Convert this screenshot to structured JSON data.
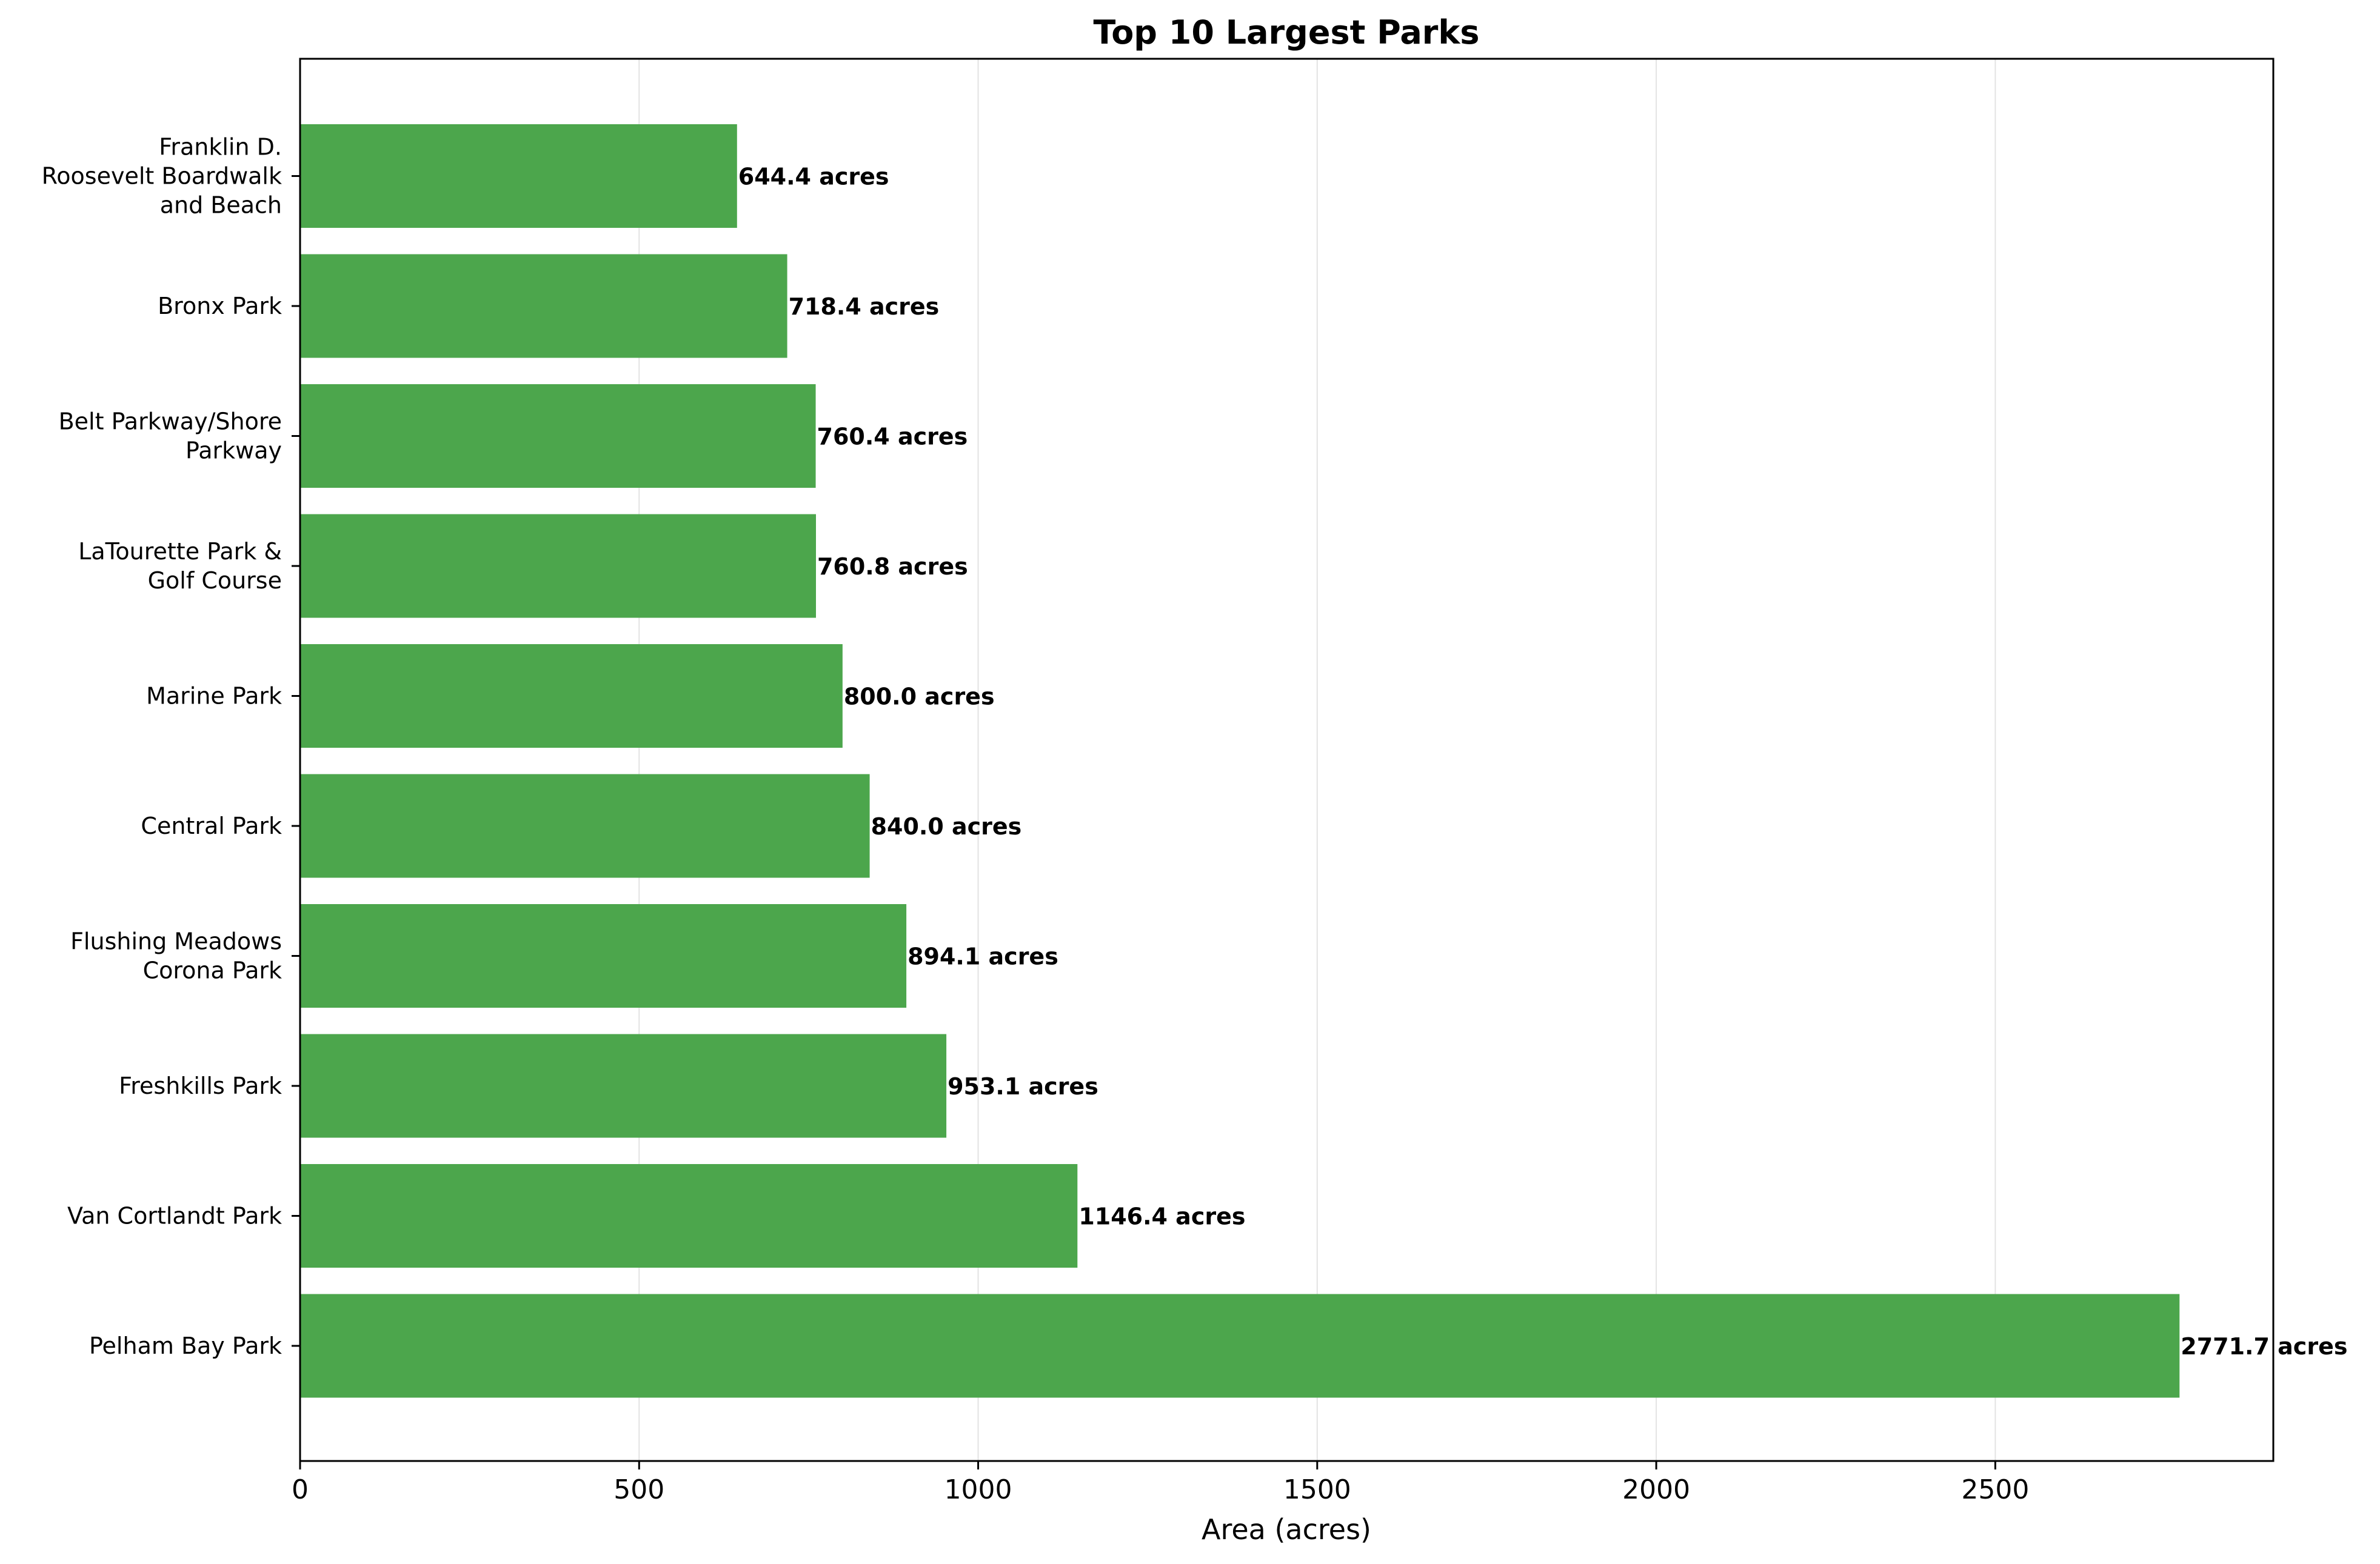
{
  "chart_data": {
    "type": "bar",
    "orientation": "horizontal",
    "title": "Top 10 Largest Parks",
    "xlabel": "Area (acres)",
    "ylabel": "",
    "xlim": [
      0,
      2910
    ],
    "xticks": [
      0,
      500,
      1000,
      1500,
      2000,
      2500
    ],
    "grid": "x",
    "bar_color": "#4ca64c",
    "categories": [
      [
        "Pelham Bay Park"
      ],
      [
        "Van Cortlandt Park"
      ],
      [
        "Freshkills Park"
      ],
      [
        "Flushing Meadows",
        "Corona Park"
      ],
      [
        "Central Park"
      ],
      [
        "Marine Park"
      ],
      [
        "LaTourette Park &",
        "Golf Course"
      ],
      [
        "Belt Parkway/Shore",
        "Parkway"
      ],
      [
        "Bronx Park"
      ],
      [
        "Franklin D.",
        "Roosevelt Boardwalk",
        "and Beach"
      ]
    ],
    "values": [
      2771.7,
      1146.4,
      953.1,
      894.1,
      840.0,
      800.0,
      760.8,
      760.4,
      718.4,
      644.4
    ],
    "data_labels": [
      "2771.7 acres",
      "1146.4 acres",
      "953.1 acres",
      "894.1 acres",
      "840.0 acres",
      "800.0 acres",
      "760.8 acres",
      "760.4 acres",
      "718.4 acres",
      "644.4 acres"
    ]
  }
}
